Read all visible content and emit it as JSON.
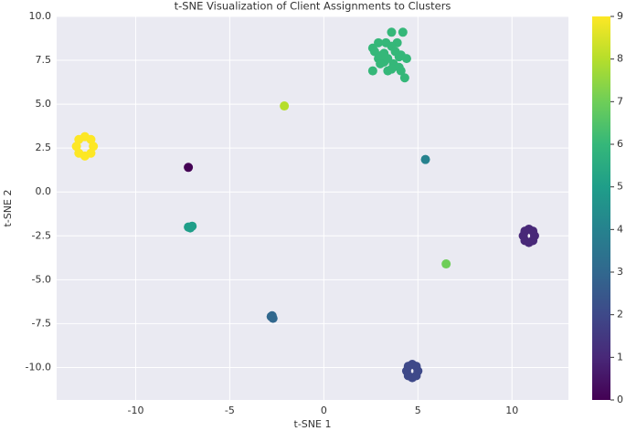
{
  "chart_data": {
    "type": "scatter",
    "title": "t-SNE Visualization of Client Assignments to Clusters",
    "x_label": "t-SNE 1",
    "y_label": "t-SNE 2",
    "x": [
      -12.25,
      -12.38,
      -12.7,
      -13.02,
      -13.15,
      -13.02,
      -12.7,
      -12.38,
      11.2,
      11.11,
      10.9,
      10.69,
      10.6,
      10.69,
      10.9,
      11.11,
      5.0,
      4.91,
      4.7,
      4.49,
      4.4,
      4.49,
      4.7,
      4.91,
      -7.2,
      -7.0,
      -7.1,
      -2.8,
      -2.7,
      -2.75,
      -7.2,
      -2.1,
      5.4,
      6.5,
      2.6,
      2.9,
      3.6,
      4.2,
      3.9,
      2.7,
      3.2,
      3.6,
      4.0,
      4.4,
      4.3,
      2.9,
      3.2,
      3.4,
      3.7,
      4.0,
      4.1,
      3.4,
      3.6,
      2.6,
      3.0,
      4.1,
      3.3,
      3.8,
      3.1
    ],
    "values": [
      2.6,
      2.99,
      3.15,
      2.99,
      2.6,
      2.21,
      2.05,
      2.21,
      -2.5,
      -2.23,
      -2.12,
      -2.23,
      -2.5,
      -2.77,
      -2.88,
      -2.77,
      -10.2,
      -9.93,
      -9.82,
      -9.93,
      -10.2,
      -10.47,
      -10.58,
      -10.47,
      -2.0,
      -1.95,
      -2.05,
      -7.1,
      -7.2,
      -7.05,
      1.4,
      4.9,
      1.85,
      -4.1,
      8.2,
      8.5,
      9.1,
      9.1,
      8.5,
      8.0,
      7.9,
      8.3,
      7.7,
      7.6,
      6.5,
      7.6,
      7.4,
      7.6,
      7.3,
      7.1,
      7.8,
      6.9,
      7.0,
      6.9,
      7.3,
      6.9,
      8.5,
      8.0,
      7.8
    ],
    "clusters": [
      9,
      9,
      9,
      9,
      9,
      9,
      9,
      9,
      1,
      1,
      1,
      1,
      1,
      1,
      1,
      1,
      2,
      2,
      2,
      2,
      2,
      2,
      2,
      2,
      5,
      5,
      5,
      3,
      3,
      3,
      0,
      8,
      4,
      7,
      6,
      6,
      6,
      6,
      6,
      6,
      6,
      6,
      6,
      6,
      6,
      6,
      6,
      6,
      6,
      6,
      6,
      6,
      6,
      6,
      6,
      6,
      6,
      6,
      6
    ],
    "colormap": "viridis",
    "clim": [
      0,
      9
    ],
    "cticks": [
      0,
      1,
      2,
      3,
      4,
      5,
      6,
      7,
      8,
      9
    ],
    "xlim": [
      -14.2,
      13.0
    ],
    "ylim": [
      -11.85,
      10.0
    ],
    "xticks": [
      -10,
      -5,
      0,
      5,
      10
    ],
    "yticks": [
      {
        "value": -10,
        "label": "-10.0"
      },
      -7.5,
      {
        "value": -5,
        "label": "-5.0"
      },
      -2.5,
      {
        "value": 0,
        "label": "0.0"
      },
      2.5,
      {
        "value": 5,
        "label": "5.0"
      },
      7.5,
      {
        "value": 10,
        "label": "10.0"
      }
    ],
    "grid": true
  }
}
